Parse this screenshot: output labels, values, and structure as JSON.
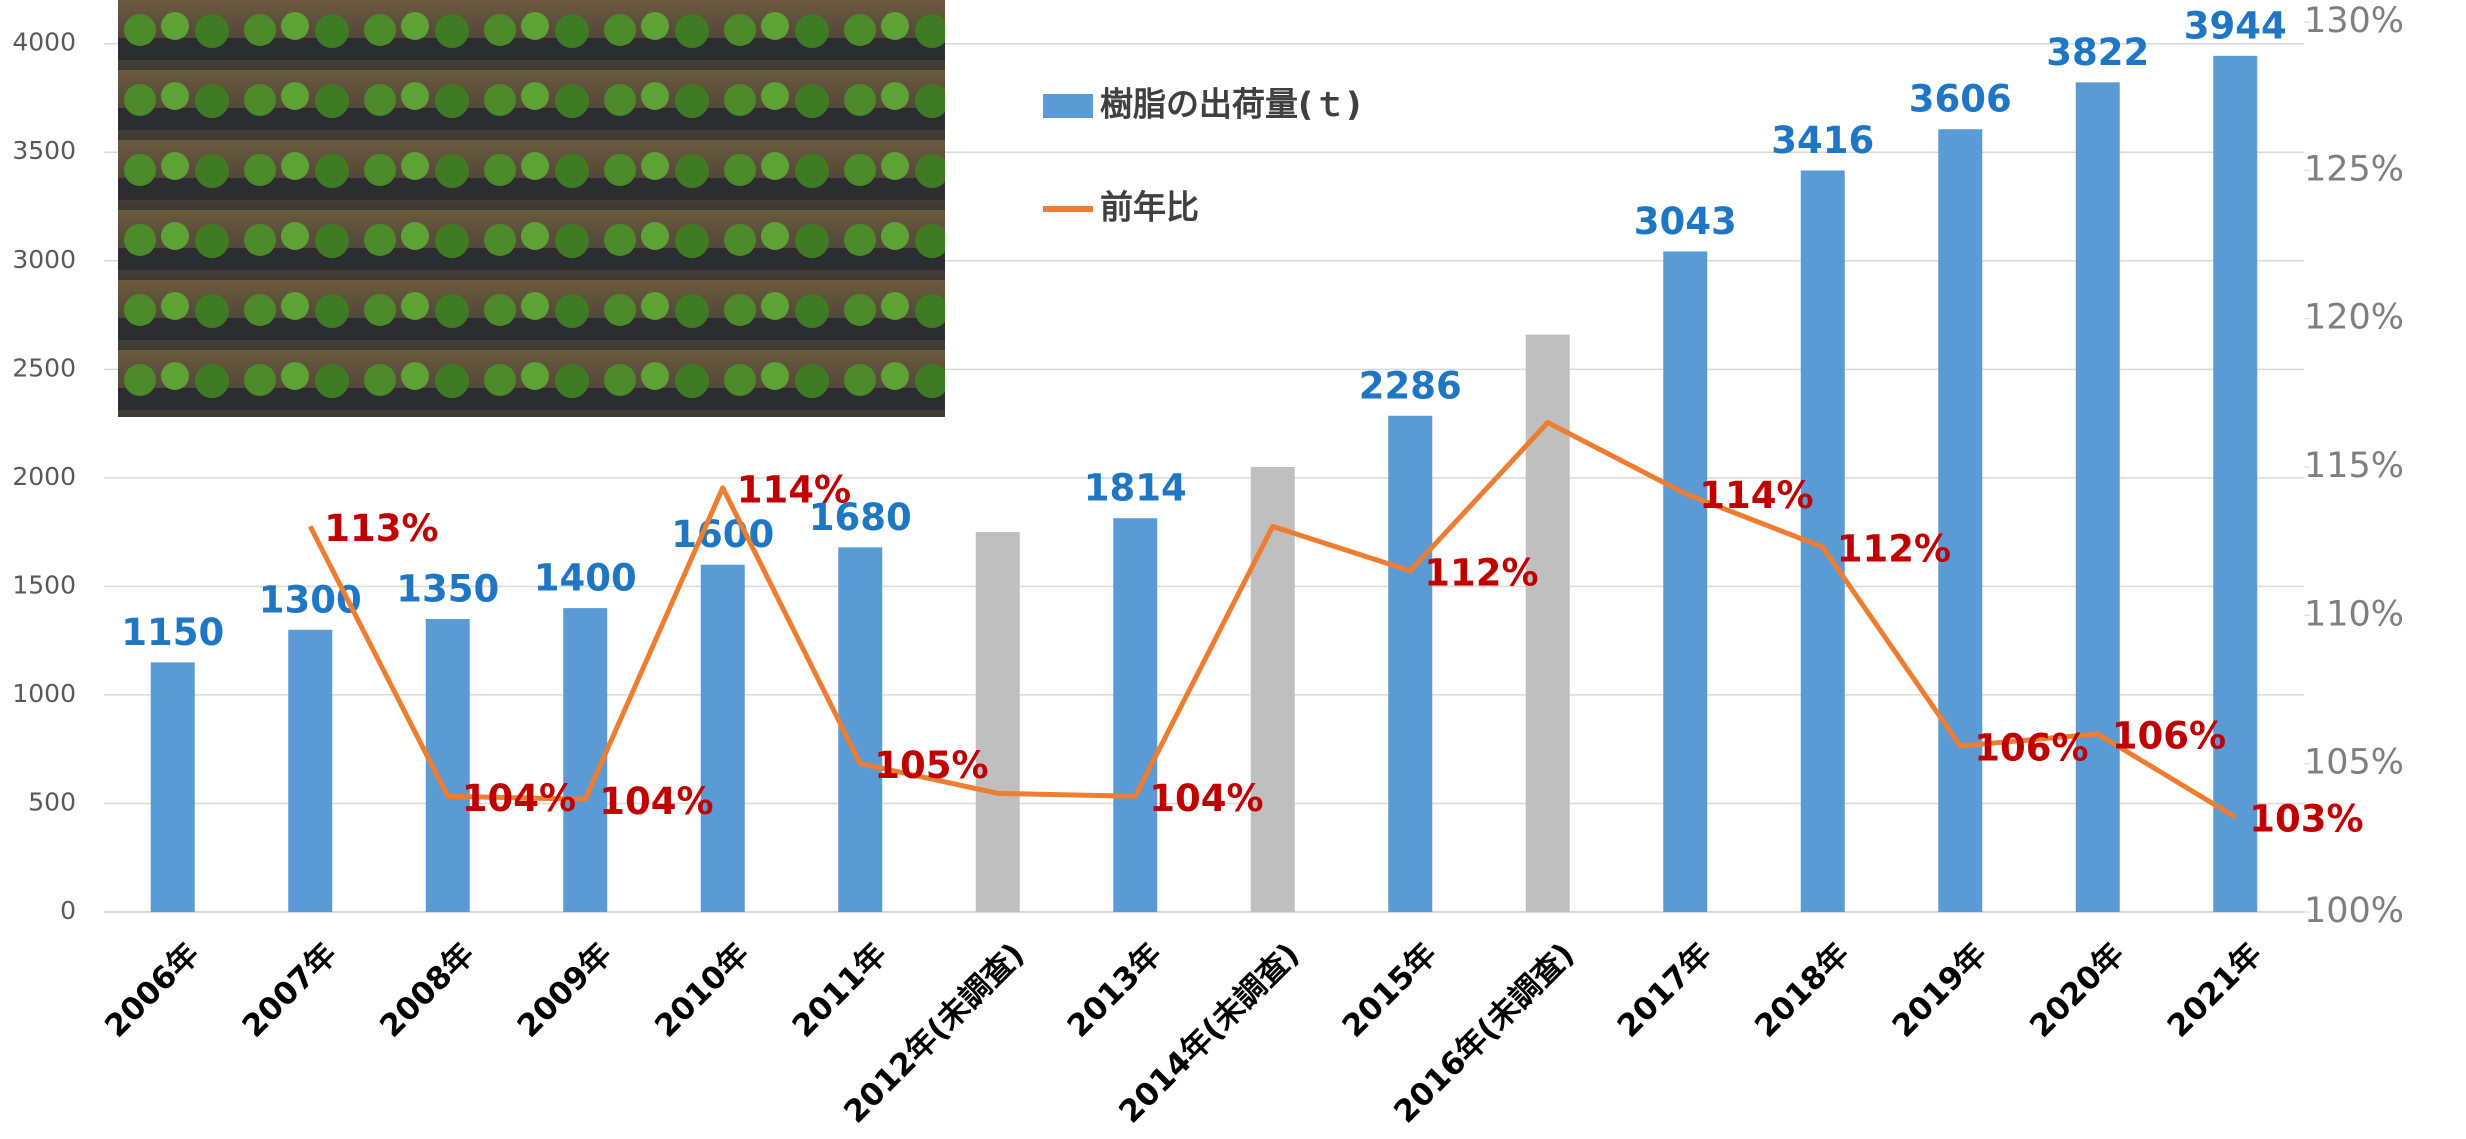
{
  "chart_data": {
    "type": "bar-line",
    "categories": [
      "2006年",
      "2007年",
      "2008年",
      "2009年",
      "2010年",
      "2011年",
      "2012年(未調査)",
      "2013年",
      "2014年(未調査)",
      "2015年",
      "2016年(未調査)",
      "2017年",
      "2018年",
      "2019年",
      "2020年",
      "2021年"
    ],
    "series": [
      {
        "name": "樹脂の出荷量(ｔ)",
        "type": "bar",
        "color": "#5b9bd5",
        "colors": [
          "#5b9bd5",
          "#5b9bd5",
          "#5b9bd5",
          "#5b9bd5",
          "#5b9bd5",
          "#5b9bd5",
          "#bfbfbf",
          "#5b9bd5",
          "#bfbfbf",
          "#5b9bd5",
          "#bfbfbf",
          "#5b9bd5",
          "#5b9bd5",
          "#5b9bd5",
          "#5b9bd5",
          "#5b9bd5"
        ],
        "values": [
          1150,
          1300,
          1350,
          1400,
          1600,
          1680,
          1750,
          1814,
          2050,
          2286,
          2660,
          3043,
          3416,
          3606,
          3822,
          3944
        ],
        "value_labels": [
          "1150",
          "1300",
          "1350",
          "1400",
          "1600",
          "1680",
          null,
          "1814",
          null,
          "2286",
          null,
          "3043",
          "3416",
          "3606",
          "3822",
          "3944"
        ],
        "label_color": "#1f77c4"
      },
      {
        "name": "前年比",
        "type": "line",
        "axis": "y2",
        "color": "#ed7d31",
        "values": [
          null,
          113.0,
          103.9,
          103.8,
          114.3,
          105.0,
          104.0,
          103.9,
          113.0,
          111.5,
          116.5,
          114.1,
          112.3,
          105.6,
          106.0,
          103.2
        ],
        "value_labels": [
          null,
          "113%",
          "104%",
          "104%",
          "114%",
          "105%",
          null,
          "104%",
          null,
          "112%",
          null,
          "114%",
          "112%",
          "106%",
          "106%",
          "103%"
        ],
        "label_color": "#c00000"
      }
    ],
    "ylim": [
      0,
      4100
    ],
    "yticks": [
      0,
      500,
      1000,
      1500,
      2000,
      2500,
      3000,
      3500,
      4000
    ],
    "y2lim": [
      100,
      130
    ],
    "y2ticks": [
      {
        "value": 100,
        "label": "100%"
      },
      {
        "value": 105,
        "label": "105%"
      },
      {
        "value": 110,
        "label": "110%"
      },
      {
        "value": 115,
        "label": "115%"
      },
      {
        "value": 120,
        "label": "120%"
      },
      {
        "value": 125,
        "label": "125%"
      },
      {
        "value": 130,
        "label": "130%"
      }
    ],
    "grid": true
  }
}
